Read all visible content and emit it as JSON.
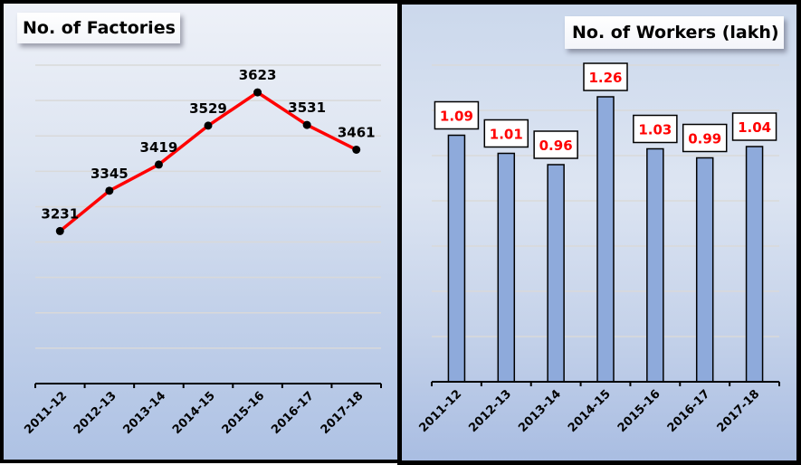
{
  "chart_data": [
    {
      "type": "line",
      "title": "No. of Factories",
      "categories": [
        "2011-12",
        "2012-13",
        "2013-14",
        "2014-15",
        "2015-16",
        "2016-17",
        "2017-18"
      ],
      "values": [
        3231,
        3345,
        3419,
        3529,
        3623,
        3531,
        3461
      ],
      "xlabel": "",
      "ylabel": "",
      "ylim": [
        2800,
        3700
      ],
      "gridlines": true,
      "y_axis_visible": false,
      "data_labels": true,
      "line_color": "#ff0000",
      "marker_color": "#000000",
      "legend": "none"
    },
    {
      "type": "bar",
      "title": "No. of Workers (lakh)",
      "categories": [
        "2011-12",
        "2012-13",
        "2013-14",
        "2014-15",
        "2015-16",
        "2016-17",
        "2017-18"
      ],
      "values": [
        1.09,
        1.01,
        0.96,
        1.26,
        1.03,
        0.99,
        1.04
      ],
      "xlabel": "",
      "ylabel": "",
      "ylim": [
        0,
        1.4
      ],
      "gridlines": true,
      "y_axis_visible": false,
      "data_labels": true,
      "bar_color": "#8eaadb",
      "label_color": "#ff0000",
      "legend": "none"
    }
  ],
  "left": {
    "title": "No. of Factories",
    "labels": [
      "3231",
      "3345",
      "3419",
      "3529",
      "3623",
      "3531",
      "3461"
    ],
    "categories": [
      "2011-12",
      "2012-13",
      "2013-14",
      "2014-15",
      "2015-16",
      "2016-17",
      "2017-18"
    ]
  },
  "right": {
    "title": "No. of Workers (lakh)",
    "labels": [
      "1.09",
      "1.01",
      "0.96",
      "1.26",
      "1.03",
      "0.99",
      "1.04"
    ],
    "categories": [
      "2011-12",
      "2012-13",
      "2013-14",
      "2014-15",
      "2015-16",
      "2016-17",
      "2017-18"
    ]
  },
  "colors": {
    "line": "#ff0000",
    "marker": "#000000",
    "bar_fill": "#8eaadb",
    "bar_label": "#ff0000",
    "gridline": "#d9d9d9"
  }
}
